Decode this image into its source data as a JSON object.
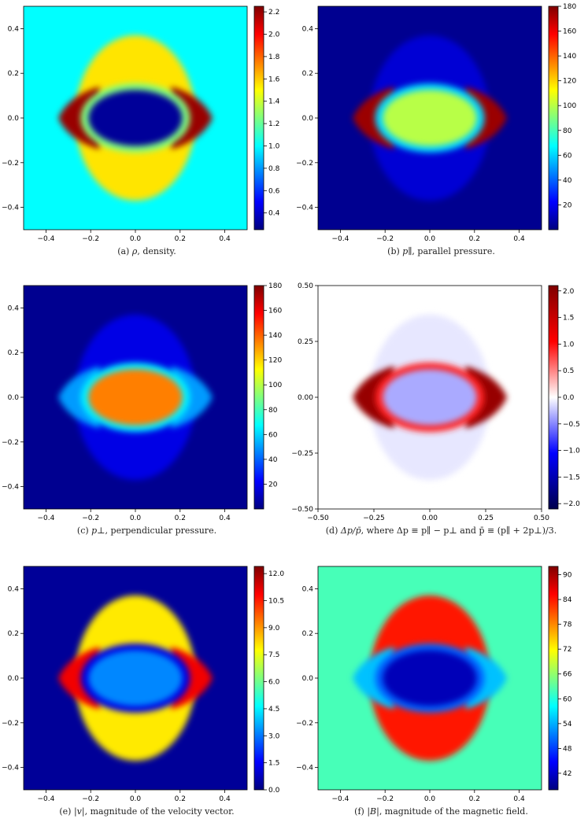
{
  "colors": {
    "jet_stops": [
      "#00007f",
      "#0000ff",
      "#007fff",
      "#00ffff",
      "#7fff7f",
      "#ffff00",
      "#ff7f00",
      "#ff0000",
      "#7f0000"
    ],
    "seismic_stops": [
      "#00004c",
      "#0000ff",
      "#ffffff",
      "#ff0000",
      "#7f0000"
    ]
  },
  "chart_data": [
    {
      "id": "a",
      "type": "heatmap",
      "caption_label": "(a)",
      "caption_symbol": "ρ",
      "caption_text": ", density.",
      "colormap": "jet",
      "xlim": [
        -0.5,
        0.5
      ],
      "ylim": [
        -0.5,
        0.5
      ],
      "x_ticks": [
        "−0.4",
        "−0.2",
        "0.0",
        "0.2",
        "0.4"
      ],
      "y_ticks": [
        "−0.4",
        "−0.2",
        "0.0",
        "0.2",
        "0.4"
      ],
      "clim": [
        0.25,
        2.25
      ],
      "colorbar_ticks": [
        "0.4",
        "0.6",
        "0.8",
        "1.0",
        "1.2",
        "1.4",
        "1.6",
        "1.8",
        "2.0",
        "2.2"
      ],
      "colorbar_values": [
        0.4,
        0.6,
        0.8,
        1.0,
        1.2,
        1.4,
        1.6,
        1.8,
        2.0,
        2.2
      ],
      "field": {
        "background": 1.0,
        "shell": 1.55,
        "core": 0.3,
        "rim": 1.25,
        "lobe": 2.2
      }
    },
    {
      "id": "b",
      "type": "heatmap",
      "caption_label": "(b)",
      "caption_symbol": "p∥",
      "caption_text": ", parallel pressure.",
      "colormap": "jet",
      "xlim": [
        -0.5,
        0.5
      ],
      "ylim": [
        -0.5,
        0.5
      ],
      "x_ticks": [
        "−0.4",
        "−0.2",
        "0.0",
        "0.2",
        "0.4"
      ],
      "y_ticks": [
        "−0.4",
        "−0.2",
        "0.0",
        "0.2",
        "0.4"
      ],
      "clim": [
        0,
        180
      ],
      "colorbar_ticks": [
        "20",
        "40",
        "60",
        "80",
        "100",
        "120",
        "140",
        "160",
        "180"
      ],
      "colorbar_values": [
        20,
        40,
        60,
        80,
        100,
        120,
        140,
        160,
        180
      ],
      "field": {
        "background": 3,
        "shell": 15,
        "core": 100,
        "rim": 60,
        "lobe": 175
      }
    },
    {
      "id": "c",
      "type": "heatmap",
      "caption_label": "(c)",
      "caption_symbol": "p⊥",
      "caption_text": ", perpendicular pressure.",
      "colormap": "jet",
      "xlim": [
        -0.5,
        0.5
      ],
      "ylim": [
        -0.5,
        0.5
      ],
      "x_ticks": [
        "−0.4",
        "−0.2",
        "0.0",
        "0.2",
        "0.4"
      ],
      "y_ticks": [
        "−0.4",
        "−0.2",
        "0.0",
        "0.2",
        "0.4"
      ],
      "clim": [
        0,
        180
      ],
      "colorbar_ticks": [
        "20",
        "40",
        "60",
        "80",
        "100",
        "120",
        "140",
        "160",
        "180"
      ],
      "colorbar_values": [
        20,
        40,
        60,
        80,
        100,
        120,
        140,
        160,
        180
      ],
      "field": {
        "background": 3,
        "shell": 18,
        "core": 135,
        "rim": 65,
        "lobe": 50
      }
    },
    {
      "id": "d",
      "type": "heatmap",
      "caption_label": "(d)",
      "caption_symbol": "Δp/p̄",
      "caption_text": ", where Δp ≡ p∥ − p⊥ and p̄ ≡ (p∥ + 2p⊥)/3.",
      "colormap": "seismic",
      "xlim": [
        -0.5,
        0.5
      ],
      "ylim": [
        -0.5,
        0.5
      ],
      "x_ticks": [
        "−0.50",
        "−0.25",
        "0.00",
        "0.25",
        "0.50"
      ],
      "y_ticks": [
        "−0.50",
        "−0.25",
        "0.00",
        "0.25",
        "0.50"
      ],
      "clim": [
        -2.1,
        2.1
      ],
      "colorbar_ticks": [
        "−2.0",
        "−1.5",
        "−1.0",
        "−0.5",
        "0.0",
        "0.5",
        "1.0",
        "1.5",
        "2.0"
      ],
      "colorbar_values": [
        -2.0,
        -1.5,
        -1.0,
        -0.5,
        0.0,
        0.5,
        1.0,
        1.5,
        2.0
      ],
      "field": {
        "background": 0.0,
        "shell": -0.1,
        "core": -0.35,
        "rim": 0.9,
        "lobe": 1.9
      }
    },
    {
      "id": "e",
      "type": "heatmap",
      "caption_label": "(e)",
      "caption_symbol": "|v|",
      "caption_text": ", magnitude of the velocity vector.",
      "colormap": "jet",
      "xlim": [
        -0.5,
        0.5
      ],
      "ylim": [
        -0.5,
        0.5
      ],
      "x_ticks": [
        "−0.4",
        "−0.2",
        "0.0",
        "0.2",
        "0.4"
      ],
      "y_ticks": [
        "−0.4",
        "−0.2",
        "0.0",
        "0.2",
        "0.4"
      ],
      "clim": [
        0,
        12.4
      ],
      "colorbar_ticks": [
        "0.0",
        "1.5",
        "3.0",
        "4.5",
        "6.0",
        "7.5",
        "9.0",
        "10.5",
        "12.0"
      ],
      "colorbar_values": [
        0.0,
        1.5,
        3.0,
        4.5,
        6.0,
        7.5,
        9.0,
        10.5,
        12.0
      ],
      "field": {
        "background": 0.3,
        "shell": 8.0,
        "core": 3.2,
        "rim": 1.2,
        "lobe": 11.0
      }
    },
    {
      "id": "f",
      "type": "heatmap",
      "caption_label": "(f)",
      "caption_symbol": "|B|",
      "caption_text": ", magnitude of the magnetic field.",
      "colormap": "jet",
      "xlim": [
        -0.5,
        0.5
      ],
      "ylim": [
        -0.5,
        0.5
      ],
      "x_ticks": [
        "−0.4",
        "−0.2",
        "0.0",
        "0.2",
        "0.4"
      ],
      "y_ticks": [
        "−0.4",
        "−0.2",
        "0.0",
        "0.2",
        "0.4"
      ],
      "clim": [
        38,
        92
      ],
      "colorbar_ticks": [
        "42",
        "48",
        "54",
        "60",
        "66",
        "72",
        "78",
        "84",
        "90"
      ],
      "colorbar_values": [
        42,
        48,
        54,
        60,
        66,
        72,
        78,
        84,
        90
      ],
      "field": {
        "background": 62,
        "shell": 84,
        "core": 41,
        "rim": 50,
        "lobe": 55
      }
    }
  ]
}
